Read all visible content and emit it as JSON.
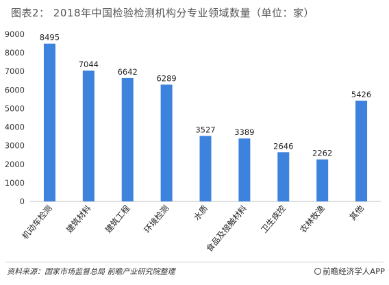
{
  "chart_data": {
    "type": "bar",
    "title": "图表2： 2018年中国检验检测机构分专业领域数量（单位：家）",
    "categories": [
      "机动车检测",
      "建筑材料",
      "建筑工程",
      "环境检测",
      "水质",
      "食品及接触材料",
      "卫生疾控",
      "农林牧渔",
      "其他"
    ],
    "values": [
      8495,
      7044,
      6642,
      6289,
      3527,
      3389,
      2646,
      2262,
      5426
    ],
    "yticks": [
      0,
      1000,
      2000,
      3000,
      4000,
      5000,
      6000,
      7000,
      8000,
      9000
    ],
    "ylim": [
      0,
      9000
    ],
    "grid": false,
    "bar_color": "#3d82dc"
  },
  "footer": {
    "source": "资料来源：国家市场监督总局 前瞻产业研究院整理",
    "brand": "前瞻经济学人APP"
  }
}
